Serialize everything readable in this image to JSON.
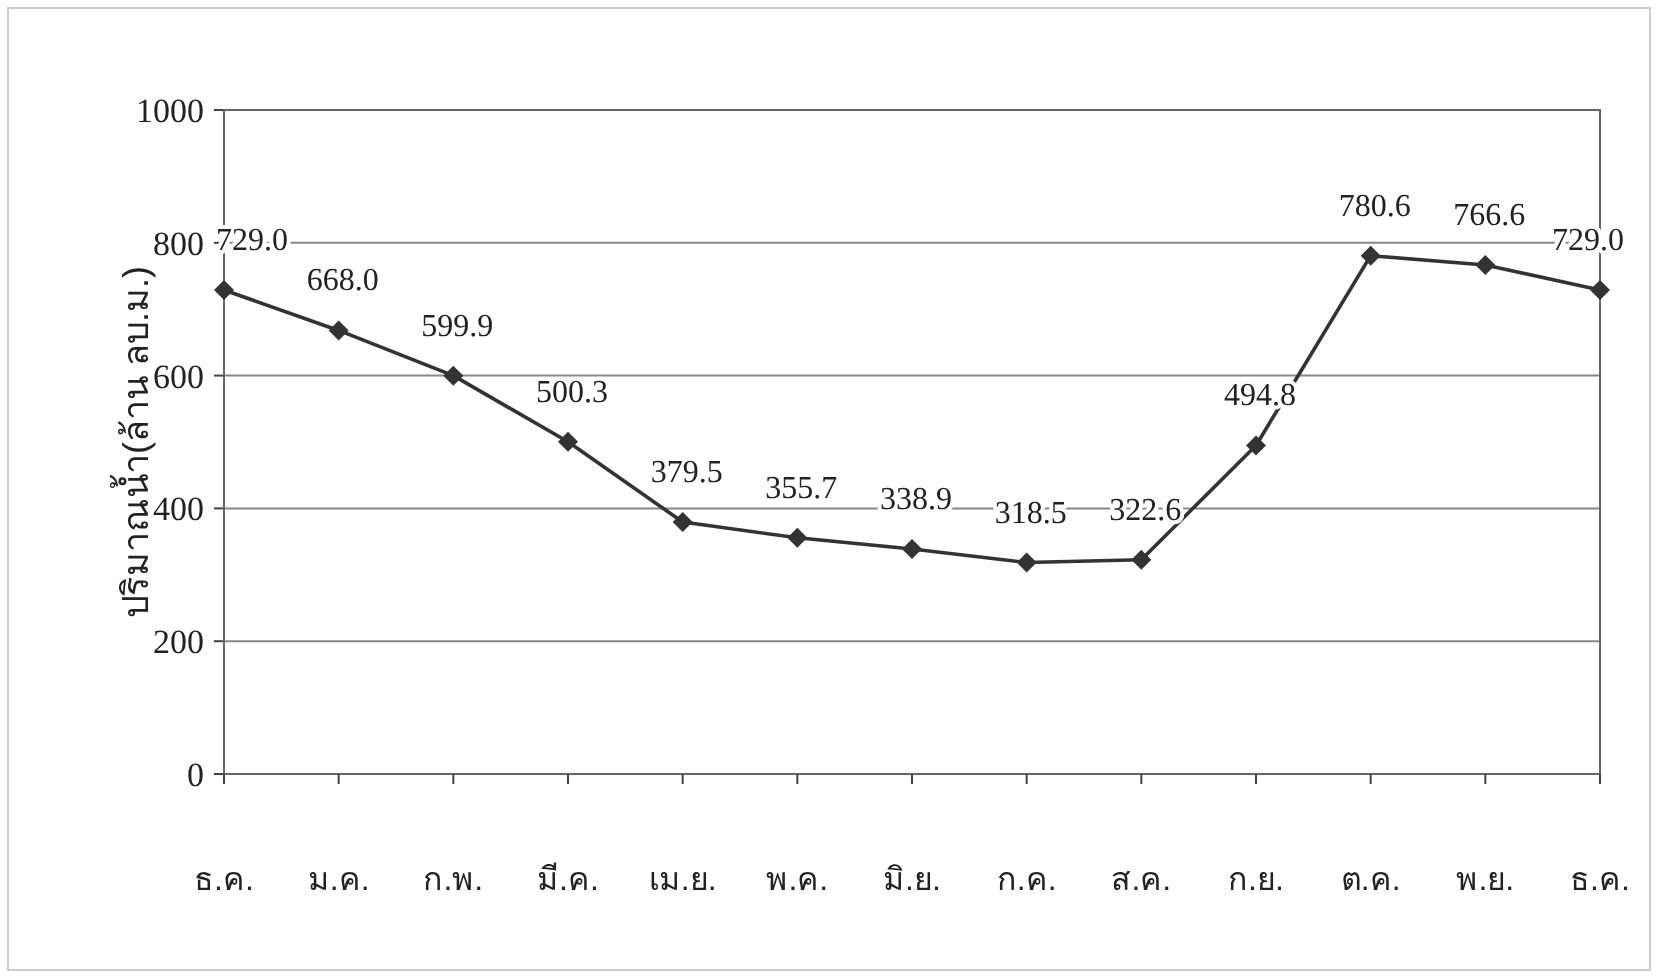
{
  "chart_data": {
    "type": "line",
    "ylabel": "ปริมาณน้ำ(ล้าน ลบ.ม.)",
    "categories": [
      "ธ.ค.",
      "ม.ค.",
      "ก.พ.",
      "มี.ค.",
      "เม.ย.",
      "พ.ค.",
      "มิ.ย.",
      "ก.ค.",
      "ส.ค.",
      "ก.ย.",
      "ต.ค.",
      "พ.ย.",
      "ธ.ค."
    ],
    "series": [
      {
        "color": "#333333",
        "values": [
          729.0,
          668.0,
          599.9,
          500.3,
          379.5,
          355.7,
          338.9,
          318.5,
          322.6,
          494.8,
          780.6,
          766.6,
          729.0
        ]
      }
    ],
    "value_labels": [
      "729.0",
      "668.0",
      "599.9",
      "500.3",
      "379.5",
      "355.7",
      "338.9",
      "318.5",
      "322.6",
      "494.8",
      "780.6",
      "766.6",
      "729.0"
    ],
    "ylim": [
      0,
      1000
    ],
    "yticks": [
      0,
      200,
      400,
      600,
      800,
      1000
    ],
    "grid": "y",
    "marker": "diamond",
    "line_style": "solid"
  }
}
